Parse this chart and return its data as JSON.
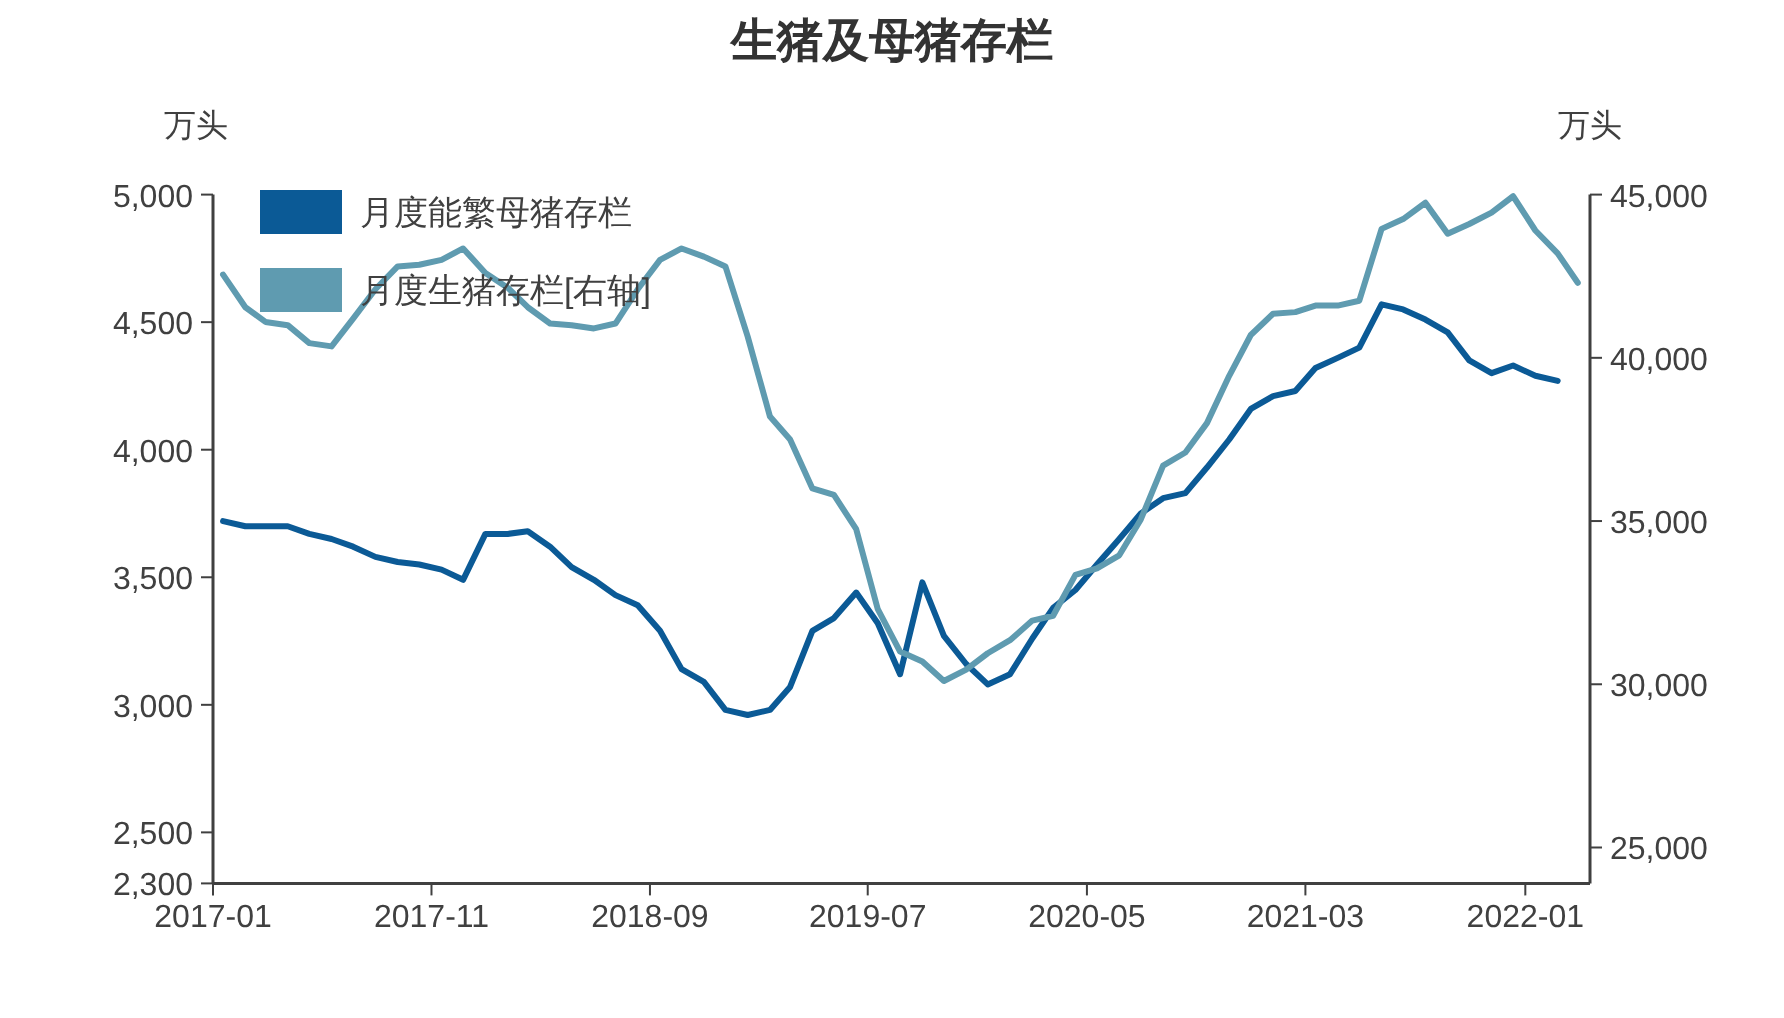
{
  "chart_data": {
    "type": "line",
    "title": "生猪及母猪存栏",
    "ylabel": "万头",
    "y2label": "万头",
    "x": [
      "2017-01-15",
      "2017-02-15",
      "2017-03-15",
      "2017-04-15",
      "2017-05-15",
      "2017-06-15",
      "2017-07-15",
      "2017-08-15",
      "2017-09-15",
      "2017-10-15",
      "2017-11-15",
      "2017-12-15",
      "2018-01-15",
      "2018-02-15",
      "2018-03-15",
      "2018-04-15",
      "2018-05-15",
      "2018-06-15",
      "2018-07-15",
      "2018-08-15",
      "2018-09-15",
      "2018-10-15",
      "2018-11-15",
      "2018-12-15",
      "2019-01-15",
      "2019-02-15",
      "2019-03-15",
      "2019-04-15",
      "2019-05-15",
      "2019-06-15",
      "2019-07-15",
      "2019-08-15",
      "2019-09-15",
      "2019-10-15",
      "2019-11-15",
      "2019-12-15",
      "2020-01-15",
      "2020-02-15",
      "2020-03-15",
      "2020-04-15",
      "2020-05-15",
      "2020-06-15",
      "2020-07-15",
      "2020-08-15",
      "2020-09-15",
      "2020-10-15",
      "2020-11-15",
      "2020-12-15",
      "2021-01-15",
      "2021-02-15",
      "2021-03-15",
      "2021-04-15",
      "2021-05-15",
      "2021-06-15",
      "2021-07-15",
      "2021-08-15",
      "2021-09-15",
      "2021-10-15",
      "2021-11-15",
      "2021-12-15",
      "2022-01-15",
      "2022-02-15",
      "2022-03-15"
    ],
    "series": [
      {
        "name": "月度能繁母猪存栏",
        "color": "#0b5a96",
        "values": [
          3720,
          3700,
          3700,
          3700,
          3670,
          3650,
          3620,
          3580,
          3560,
          3550,
          3530,
          3490,
          3670,
          3670,
          3680,
          3620,
          3540,
          3490,
          3430,
          3390,
          3290,
          3140,
          3090,
          2980,
          2960,
          2980,
          3070,
          3290,
          3340,
          3440,
          3320,
          3120,
          3480,
          3270,
          3160,
          3080,
          3120,
          3260,
          3380,
          3450,
          3550,
          3650,
          3750,
          3810,
          3830,
          3930,
          4040,
          4160,
          4210,
          4230,
          4320,
          4360,
          4400,
          4570,
          4550,
          4510,
          4460,
          4350,
          4300,
          4330,
          4290,
          4270,
          null
        ]
      },
      {
        "name": "月度生猪存栏[右轴]",
        "color": "#5f9bb0",
        "axis": "y2",
        "values": [
          42550,
          41550,
          41100,
          41000,
          40450,
          40350,
          41200,
          42100,
          42800,
          42850,
          43000,
          43350,
          42600,
          42150,
          41550,
          41050,
          41000,
          40900,
          41050,
          42100,
          43000,
          43350,
          43100,
          42800,
          40650,
          38200,
          37500,
          36000,
          35800,
          34750,
          32300,
          31000,
          30700,
          30100,
          30450,
          30950,
          31350,
          31950,
          32100,
          33350,
          33550,
          33950,
          35050,
          36700,
          37100,
          38000,
          39450,
          40700,
          41350,
          41400,
          41600,
          41600,
          41750,
          43950,
          44250,
          44750,
          43800,
          44100,
          44450,
          44950,
          43900,
          43200,
          42300
        ]
      }
    ],
    "xlim": [
      "2017-01",
      "2022-04"
    ],
    "xticks": [
      "2017-01",
      "2017-11",
      "2018-09",
      "2019-07",
      "2020-05",
      "2021-03",
      "2022-01"
    ],
    "ylim": [
      2300,
      5000
    ],
    "yticks": [
      {
        "value": 2300,
        "label": "2,300"
      },
      {
        "value": 2500,
        "label": "2,500"
      },
      {
        "value": 3000,
        "label": "3,000"
      },
      {
        "value": 3500,
        "label": "3,500"
      },
      {
        "value": 4000,
        "label": "4,000"
      },
      {
        "value": 4500,
        "label": "4,500"
      },
      {
        "value": 5000,
        "label": "5,000"
      }
    ],
    "y2lim": [
      23900,
      45000
    ],
    "y2ticks": [
      {
        "value": 25000,
        "label": "25,000"
      },
      {
        "value": 30000,
        "label": "30,000"
      },
      {
        "value": 35000,
        "label": "35,000"
      },
      {
        "value": 40000,
        "label": "40,000"
      },
      {
        "value": 45000,
        "label": "45,000"
      }
    ],
    "line_style": "solid",
    "legend": "top left"
  }
}
